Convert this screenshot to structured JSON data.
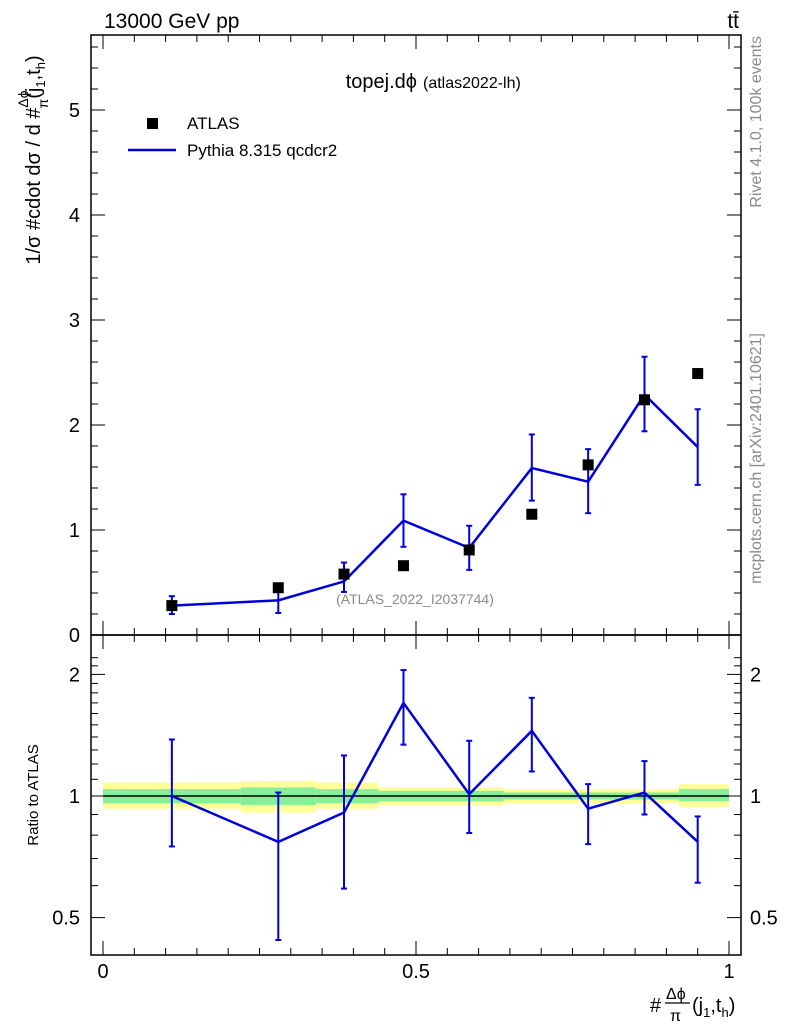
{
  "header": {
    "energy_label": "13000 GeV pp",
    "process_label": "tt̄"
  },
  "side": {
    "rivet_label": "Rivet 4.1.0,  100k events",
    "site_label": "mcplots.cern.ch [arXiv:2401.10621]"
  },
  "chart_data": [
    {
      "type": "scatter",
      "panel": "main",
      "title": "topej.dϕ",
      "subtitle": "(atlas2022-lh)",
      "watermark": "(ATLAS_2022_I2037744)",
      "ylabel": "1/σ #cdot dσ / d #Δϕ/π(j1,th)",
      "xlim": [
        0,
        1
      ],
      "ylim": [
        0,
        5.7
      ],
      "yticks": [
        0,
        1,
        2,
        3,
        4,
        5
      ],
      "legend_position": "top-left",
      "series": [
        {
          "name": "ATLAS",
          "style": "markers",
          "color": "#000000",
          "x": [
            0.11,
            0.28,
            0.385,
            0.48,
            0.585,
            0.685,
            0.775,
            0.865,
            0.95
          ],
          "y": [
            0.28,
            0.45,
            0.58,
            0.66,
            0.81,
            1.15,
            1.62,
            2.24,
            2.49
          ]
        },
        {
          "name": "Pythia 8.315 qcdcr2",
          "style": "line",
          "color": "#0000dd",
          "x": [
            0.11,
            0.28,
            0.385,
            0.48,
            0.585,
            0.685,
            0.775,
            0.865,
            0.95
          ],
          "y": [
            0.28,
            0.33,
            0.51,
            1.09,
            0.83,
            1.59,
            1.46,
            2.29,
            1.79
          ],
          "err_low": [
            0.08,
            0.12,
            0.1,
            0.25,
            0.21,
            0.31,
            0.3,
            0.35,
            0.36
          ],
          "err_high": [
            0.09,
            0.12,
            0.18,
            0.25,
            0.21,
            0.32,
            0.31,
            0.36,
            0.36
          ]
        }
      ]
    },
    {
      "type": "line",
      "panel": "ratio",
      "ylabel": "Ratio to ATLAS",
      "xlabel": "#Δϕ/π(j1,th)",
      "xlim": [
        0,
        1
      ],
      "ylim": [
        0.4,
        2.3
      ],
      "yticks": [
        0.5,
        1,
        2
      ],
      "xticks": [
        0,
        0.5,
        1
      ],
      "reference": 1,
      "bands": {
        "bins": [
          [
            0,
            0.22
          ],
          [
            0.22,
            0.34
          ],
          [
            0.34,
            0.44
          ],
          [
            0.44,
            0.64
          ],
          [
            0.64,
            0.92
          ],
          [
            0.92,
            1.0
          ]
        ],
        "yellow": [
          [
            0.93,
            1.08
          ],
          [
            0.91,
            1.09
          ],
          [
            0.93,
            1.08
          ],
          [
            0.95,
            1.05
          ],
          [
            0.96,
            1.04
          ],
          [
            0.94,
            1.07
          ]
        ],
        "green": [
          [
            0.96,
            1.04
          ],
          [
            0.95,
            1.05
          ],
          [
            0.96,
            1.04
          ],
          [
            0.97,
            1.03
          ],
          [
            0.98,
            1.02
          ],
          [
            0.97,
            1.04
          ]
        ],
        "yellow_color": "#ffff99",
        "green_color": "#88ee99"
      },
      "series": [
        {
          "name": "Pythia 8.315 qcdcr2",
          "color": "#0000dd",
          "x": [
            0.11,
            0.28,
            0.385,
            0.48,
            0.585,
            0.685,
            0.775,
            0.865,
            0.95
          ],
          "y": [
            1.0,
            0.77,
            0.91,
            1.7,
            1.01,
            1.45,
            0.93,
            1.02,
            0.77
          ],
          "err_low": [
            0.25,
            0.33,
            0.32,
            0.36,
            0.2,
            0.3,
            0.17,
            0.12,
            0.16
          ],
          "err_high": [
            0.38,
            0.25,
            0.35,
            0.35,
            0.36,
            0.3,
            0.14,
            0.2,
            0.12
          ]
        }
      ]
    }
  ]
}
